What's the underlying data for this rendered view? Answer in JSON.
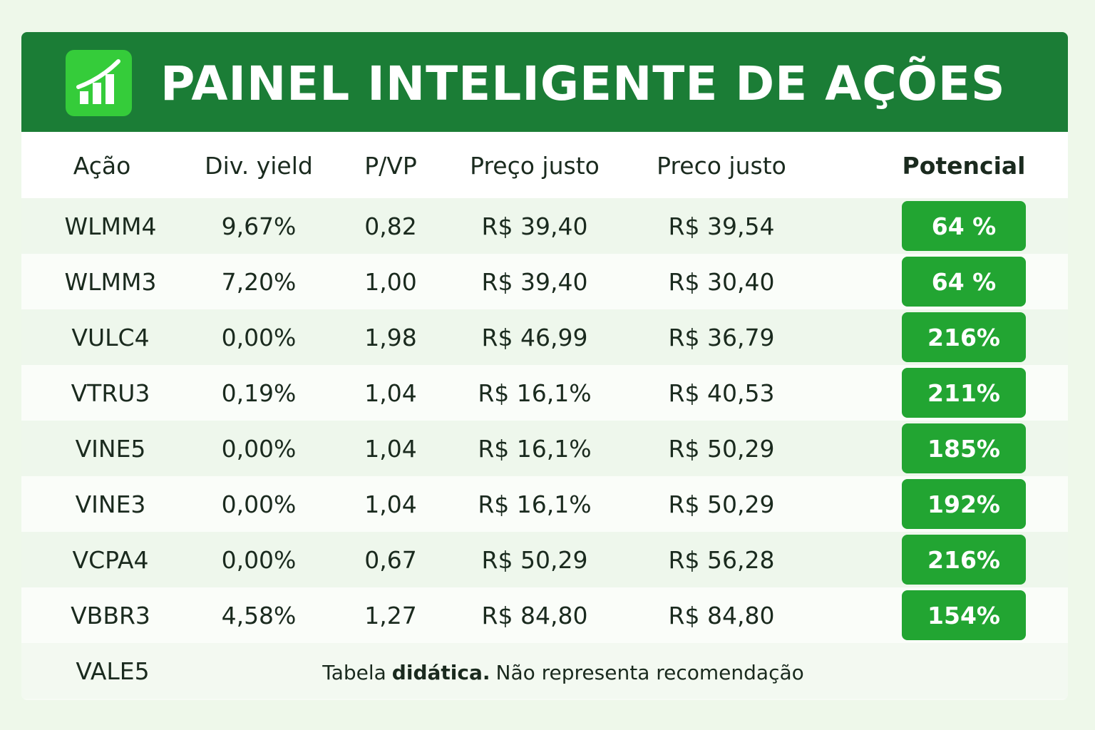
{
  "header": {
    "title": "PAINEL INTELIGENTE DE AÇÕES"
  },
  "table": {
    "columns": [
      "Ação",
      "Div. yield",
      "P/VP",
      "Preço justo",
      "Preco justo",
      "Potencial"
    ],
    "rows": [
      [
        "WLMM4",
        "9,67%",
        "0,82",
        "R$ 39,40",
        "R$ 39,54",
        "64 %"
      ],
      [
        "WLMM3",
        "7,20%",
        "1,00",
        "R$ 39,40",
        "R$ 30,40",
        "64 %"
      ],
      [
        "VULC4",
        "0,00%",
        "1,98",
        "R$ 46,99",
        "R$ 36,79",
        "216%"
      ],
      [
        "VTRU3",
        "0,19%",
        "1,04",
        "R$ 16,1%",
        "R$ 40,53",
        "211%"
      ],
      [
        "VINE5",
        "0,00%",
        "1,04",
        "R$ 16,1%",
        "R$ 50,29",
        "185%"
      ],
      [
        "VINE3",
        "0,00%",
        "1,04",
        "R$ 16,1%",
        "R$ 50,29",
        "192%"
      ],
      [
        "VCPA4",
        "0,00%",
        "0,67",
        "R$ 50,29",
        "R$ 56,28",
        "216%"
      ],
      [
        "VBBR3",
        "4,58%",
        "1,27",
        "R$ 84,80",
        "R$ 84,80",
        "154%"
      ]
    ]
  },
  "last_row": {
    "ticker": "VALE5"
  },
  "note": {
    "parts": [
      "Tabela",
      "didática.",
      "Não representa recomendação"
    ]
  }
}
